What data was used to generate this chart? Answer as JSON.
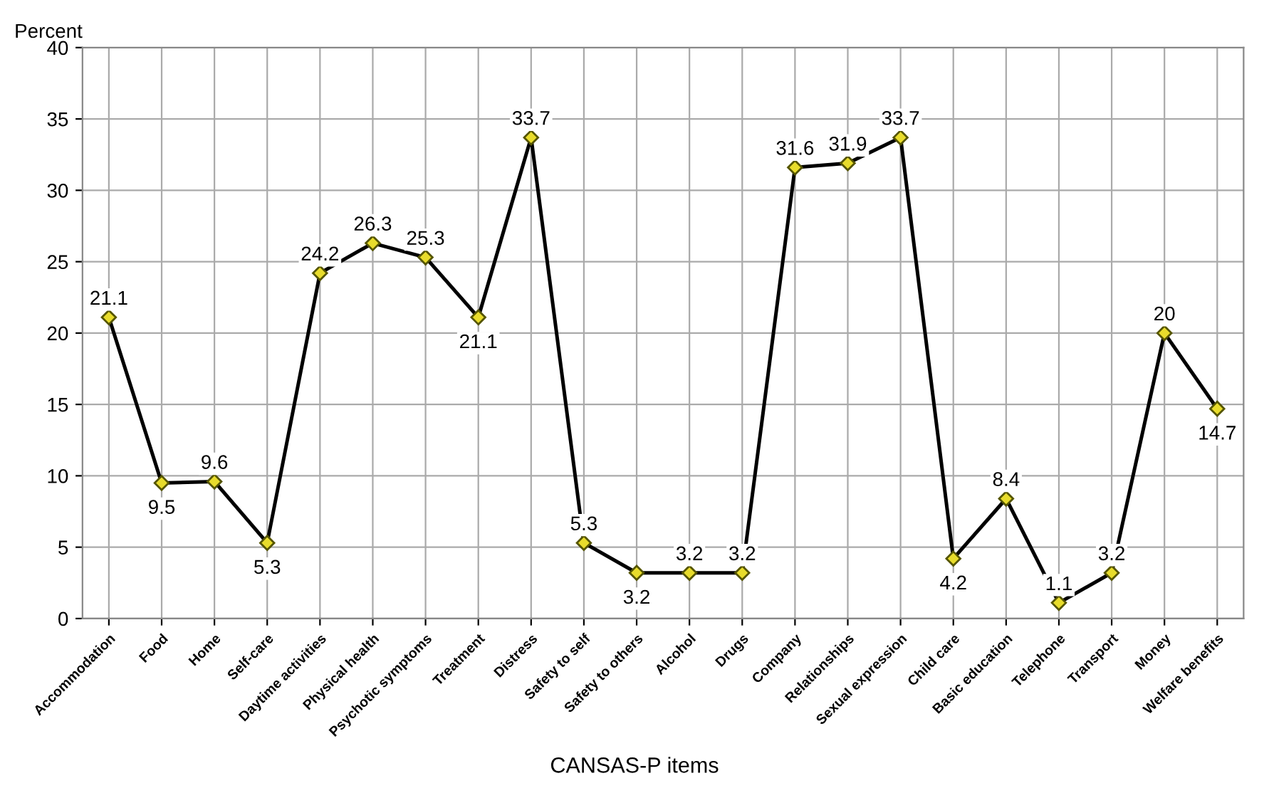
{
  "chart_data": {
    "type": "line",
    "xlabel": "CANSAS-P items",
    "ylabel": "Percent",
    "categories": [
      "Accommodation",
      "Food",
      "Home",
      "Self-care",
      "Daytime activities",
      "Physical health",
      "Psychotic symptoms",
      "Treatment",
      "Distress",
      "Safety to self",
      "Safety to others",
      "Alcohol",
      "Drugs",
      "Company",
      "Relationships",
      "Sexual expression",
      "Child care",
      "Basic education",
      "Telephone",
      "Transport",
      "Money",
      "Welfare benefits"
    ],
    "series": [
      {
        "color": "#000000",
        "values": [
          21.1,
          9.5,
          9.6,
          5.3,
          24.2,
          26.3,
          25.3,
          21.1,
          33.7,
          5.3,
          3.2,
          3.2,
          3.2,
          31.6,
          31.9,
          33.7,
          4.2,
          8.4,
          1.1,
          3.2,
          20,
          14.7
        ]
      }
    ],
    "ylim": [
      0,
      40
    ],
    "yticks": [
      0,
      5,
      10,
      15,
      20,
      25,
      30,
      35,
      40
    ],
    "grid": true,
    "marker": "diamond",
    "line_style": "solid",
    "data_labels": true,
    "legend": false
  }
}
